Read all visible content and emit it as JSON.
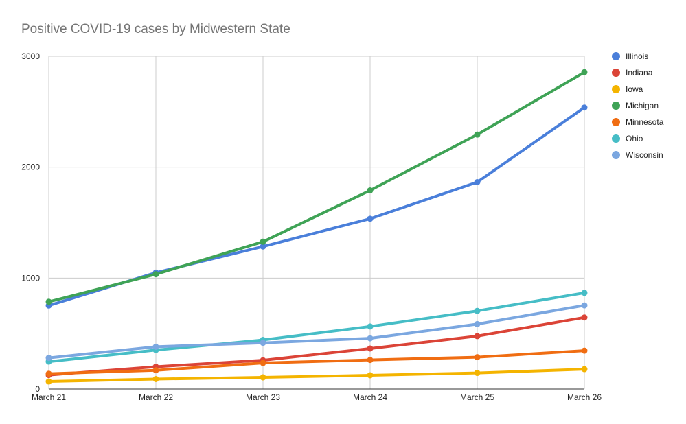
{
  "chart_data": {
    "type": "line",
    "title": "Positive COVID-19 cases by Midwestern State",
    "xlabel": "",
    "ylabel": "",
    "categories": [
      "March 21",
      "March 22",
      "March 23",
      "March 24",
      "March 25",
      "March 26"
    ],
    "ylim": [
      0,
      3000
    ],
    "yticks": [
      "0",
      "1000",
      "2000",
      "3000"
    ],
    "grid": true,
    "legend_position": "right",
    "series": [
      {
        "name": "Illinois",
        "color": "#4a7fda",
        "values": [
          753,
          1049,
          1285,
          1535,
          1865,
          2538
        ]
      },
      {
        "name": "Indiana",
        "color": "#db4437",
        "values": [
          126,
          201,
          259,
          365,
          477,
          645
        ]
      },
      {
        "name": "Iowa",
        "color": "#f4b400",
        "values": [
          68,
          90,
          105,
          124,
          145,
          179
        ]
      },
      {
        "name": "Michigan",
        "color": "#3fa356",
        "values": [
          787,
          1035,
          1328,
          1791,
          2294,
          2856
        ]
      },
      {
        "name": "Minnesota",
        "color": "#f06d12",
        "values": [
          138,
          169,
          235,
          262,
          287,
          346
        ]
      },
      {
        "name": "Ohio",
        "color": "#46bdc6",
        "values": [
          247,
          351,
          442,
          564,
          704,
          867
        ]
      },
      {
        "name": "Wisconsin",
        "color": "#7ba7e0",
        "values": [
          281,
          381,
          416,
          457,
          585,
          754
        ]
      }
    ]
  }
}
